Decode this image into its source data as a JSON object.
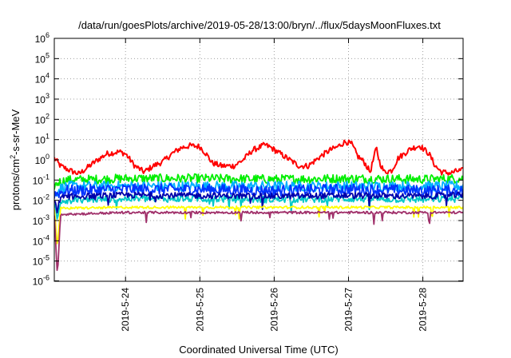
{
  "chart_data": {
    "type": "line",
    "title": "/data/run/goesPlots/archive/2019-05-28/13:00/bryn/../flux/5daysMoonFluxes.txt",
    "xlabel": "Coordinated Universal Time (UTC)",
    "ylabel": "protons/cm²-s-sr-MeV",
    "ylabel_parts": {
      "prefix": "protons/cm",
      "sup": "2",
      "suffix": "-s-sr-MeV"
    },
    "y_scale": "log",
    "ylim": [
      1e-06,
      1000000.0
    ],
    "y_ticks": [
      {
        "value": 1e-06,
        "base": "10",
        "exp": "-6"
      },
      {
        "value": 1e-05,
        "base": "10",
        "exp": "-5"
      },
      {
        "value": 0.0001,
        "base": "10",
        "exp": "-4"
      },
      {
        "value": 0.001,
        "base": "10",
        "exp": "-3"
      },
      {
        "value": 0.01,
        "base": "10",
        "exp": "-2"
      },
      {
        "value": 0.1,
        "base": "10",
        "exp": "-1"
      },
      {
        "value": 1,
        "base": "10",
        "exp": "0"
      },
      {
        "value": 10,
        "base": "10",
        "exp": "1"
      },
      {
        "value": 100,
        "base": "10",
        "exp": "2"
      },
      {
        "value": 1000,
        "base": "10",
        "exp": "3"
      },
      {
        "value": 10000,
        "base": "10",
        "exp": "4"
      },
      {
        "value": 100000,
        "base": "10",
        "exp": "5"
      },
      {
        "value": 1000000,
        "base": "10",
        "exp": "6"
      }
    ],
    "xlim": [
      "2019-05-23 01:00",
      "2019-05-28 13:00"
    ],
    "x_ticks": [
      {
        "value": "2019-05-24 00:00",
        "label": "2019-5-24"
      },
      {
        "value": "2019-05-25 00:00",
        "label": "2019-5-25"
      },
      {
        "value": "2019-05-26 00:00",
        "label": "2019-5-26"
      },
      {
        "value": "2019-05-27 00:00",
        "label": "2019-5-27"
      },
      {
        "value": "2019-05-28 00:00",
        "label": "2019-5-28"
      }
    ],
    "grid": true,
    "legend": "none",
    "series": [
      {
        "color": "#ff0000",
        "noise": 0.28,
        "spiky": false,
        "points": [
          [
            "2019-05-23 01:00",
            1.2
          ],
          [
            "2019-05-23 03:00",
            0.5
          ],
          [
            "2019-05-23 06:00",
            0.3
          ],
          [
            "2019-05-23 09:00",
            0.2
          ],
          [
            "2019-05-23 12:00",
            0.45
          ],
          [
            "2019-05-23 15:00",
            1.0
          ],
          [
            "2019-05-23 18:00",
            2.0
          ],
          [
            "2019-05-23 22:00",
            2.5
          ],
          [
            "2019-05-24 00:00",
            2.0
          ],
          [
            "2019-05-24 03:00",
            0.5
          ],
          [
            "2019-05-24 06:00",
            0.25
          ],
          [
            "2019-05-24 09:00",
            0.5
          ],
          [
            "2019-05-24 12:00",
            0.8
          ],
          [
            "2019-05-24 15:00",
            2.0
          ],
          [
            "2019-05-24 18:00",
            4.0
          ],
          [
            "2019-05-24 21:00",
            5.0
          ],
          [
            "2019-05-25 00:00",
            4.5
          ],
          [
            "2019-05-25 02:00",
            2.0
          ],
          [
            "2019-05-25 04:00",
            0.7
          ],
          [
            "2019-05-25 07:00",
            0.5
          ],
          [
            "2019-05-25 11:00",
            0.5
          ],
          [
            "2019-05-25 14:00",
            1.0
          ],
          [
            "2019-05-25 17:00",
            3.0
          ],
          [
            "2019-05-25 19:00",
            4.0
          ],
          [
            "2019-05-25 21:00",
            5.5
          ],
          [
            "2019-05-25 23:00",
            4.0
          ],
          [
            "2019-05-26 02:00",
            2.0
          ],
          [
            "2019-05-26 05:00",
            1.0
          ],
          [
            "2019-05-26 08:00",
            0.5
          ],
          [
            "2019-05-26 11:00",
            0.5
          ],
          [
            "2019-05-26 15:00",
            1.5
          ],
          [
            "2019-05-26 18:00",
            3.0
          ],
          [
            "2019-05-26 20:00",
            4.0
          ],
          [
            "2019-05-26 23:00",
            8.0
          ],
          [
            "2019-05-27 01:00",
            6.0
          ],
          [
            "2019-05-27 03:00",
            1.5
          ],
          [
            "2019-05-27 05:00",
            0.8
          ],
          [
            "2019-05-27 07:00",
            0.25
          ],
          [
            "2019-05-27 08:00",
            1.0
          ],
          [
            "2019-05-27 09:00",
            4.0
          ],
          [
            "2019-05-27 10:00",
            0.8
          ],
          [
            "2019-05-27 11:30",
            0.25
          ],
          [
            "2019-05-27 14:00",
            0.3
          ],
          [
            "2019-05-27 16:00",
            1.2
          ],
          [
            "2019-05-27 18:00",
            2.0
          ],
          [
            "2019-05-27 20:00",
            3.5
          ],
          [
            "2019-05-27 23:00",
            5.0
          ],
          [
            "2019-05-28 02:00",
            2.0
          ],
          [
            "2019-05-28 04:00",
            0.5
          ],
          [
            "2019-05-28 06:00",
            0.25
          ],
          [
            "2019-05-28 09:00",
            0.22
          ],
          [
            "2019-05-28 11:00",
            0.28
          ],
          [
            "2019-05-28 13:00",
            0.3
          ]
        ]
      },
      {
        "color": "#00ee00",
        "noise": 0.45,
        "spiky": false,
        "points": [
          [
            "2019-05-23 01:00",
            0.05
          ],
          [
            "2019-05-23 02:30",
            0.08
          ],
          [
            "2019-05-23 05:00",
            0.1
          ],
          [
            "2019-05-24 00:00",
            0.12
          ],
          [
            "2019-05-25 00:00",
            0.12
          ],
          [
            "2019-05-26 00:00",
            0.11
          ],
          [
            "2019-05-27 00:00",
            0.12
          ],
          [
            "2019-05-28 00:00",
            0.11
          ],
          [
            "2019-05-28 13:00",
            0.12
          ]
        ]
      },
      {
        "color": "#00b0ff",
        "noise": 0.5,
        "spiky": false,
        "points": [
          [
            "2019-05-23 01:00",
            0.02
          ],
          [
            "2019-05-23 03:00",
            0.04
          ],
          [
            "2019-05-23 05:00",
            0.05
          ],
          [
            "2019-05-24 00:00",
            0.05
          ],
          [
            "2019-05-25 00:00",
            0.05
          ],
          [
            "2019-05-26 00:00",
            0.05
          ],
          [
            "2019-05-27 00:00",
            0.05
          ],
          [
            "2019-05-28 00:00",
            0.05
          ],
          [
            "2019-05-28 13:00",
            0.05
          ]
        ]
      },
      {
        "color": "#0033ff",
        "noise": 0.55,
        "spiky": false,
        "points": [
          [
            "2019-05-23 01:00",
            0.02
          ],
          [
            "2019-05-23 05:00",
            0.03
          ],
          [
            "2019-05-24 00:00",
            0.035
          ],
          [
            "2019-05-25 00:00",
            0.035
          ],
          [
            "2019-05-26 00:00",
            0.03
          ],
          [
            "2019-05-27 00:00",
            0.035
          ],
          [
            "2019-05-28 00:00",
            0.03
          ],
          [
            "2019-05-28 13:00",
            0.03
          ]
        ]
      },
      {
        "color": "#00c8c8",
        "noise": 0.35,
        "spiky": true,
        "points": [
          [
            "2019-05-23 01:00",
            0.008
          ],
          [
            "2019-05-23 02:00",
            0.001
          ],
          [
            "2019-05-23 03:00",
            0.01
          ],
          [
            "2019-05-24 00:00",
            0.012
          ],
          [
            "2019-05-25 00:00",
            0.012
          ],
          [
            "2019-05-26 00:00",
            0.011
          ],
          [
            "2019-05-27 00:00",
            0.012
          ],
          [
            "2019-05-28 00:00",
            0.011
          ],
          [
            "2019-05-28 13:00",
            0.012
          ]
        ]
      },
      {
        "color": "#0000aa",
        "noise": 0.3,
        "spiky": true,
        "points": [
          [
            "2019-05-23 01:00",
            0.01
          ],
          [
            "2019-05-23 02:00",
            0.003
          ],
          [
            "2019-05-23 03:00",
            0.015
          ],
          [
            "2019-05-24 00:00",
            0.018
          ],
          [
            "2019-05-25 00:00",
            0.017
          ],
          [
            "2019-05-26 00:00",
            0.016
          ],
          [
            "2019-05-27 00:00",
            0.017
          ],
          [
            "2019-05-28 00:00",
            0.016
          ],
          [
            "2019-05-28 13:00",
            0.018
          ]
        ]
      },
      {
        "color": "#ffff00",
        "noise": 0.12,
        "spiky": true,
        "points": [
          [
            "2019-05-23 01:00",
            0.004
          ],
          [
            "2019-05-23 02:00",
            5e-05
          ],
          [
            "2019-05-23 03:00",
            0.004
          ],
          [
            "2019-05-24 00:00",
            0.0045
          ],
          [
            "2019-05-25 00:00",
            0.0045
          ],
          [
            "2019-05-26 00:00",
            0.0045
          ],
          [
            "2019-05-27 00:00",
            0.0045
          ],
          [
            "2019-05-28 00:00",
            0.0045
          ],
          [
            "2019-05-28 13:00",
            0.0045
          ]
        ]
      },
      {
        "color": "#a0306a",
        "noise": 0.12,
        "spiky": true,
        "points": [
          [
            "2019-05-23 01:00",
            0.002
          ],
          [
            "2019-05-23 02:00",
            1.5e-06
          ],
          [
            "2019-05-23 03:00",
            0.002
          ],
          [
            "2019-05-24 00:00",
            0.0025
          ],
          [
            "2019-05-25 00:00",
            0.0025
          ],
          [
            "2019-05-26 00:00",
            0.0025
          ],
          [
            "2019-05-27 00:00",
            0.0025
          ],
          [
            "2019-05-28 00:00",
            0.0025
          ],
          [
            "2019-05-28 13:00",
            0.0025
          ]
        ]
      }
    ]
  }
}
